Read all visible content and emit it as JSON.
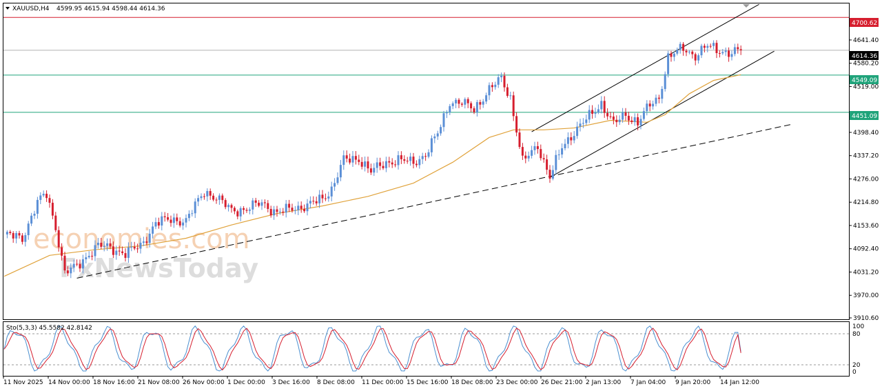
{
  "symbol_header": {
    "symbol": "XAUUSD,H4",
    "ohlc": "4599.95 4615.94 4598.44 4614.36"
  },
  "watermark": {
    "line1": "economies.com",
    "line2": "FxNewsToday"
  },
  "colors": {
    "bull_candle": "#5b8fd6",
    "bear_candle": "#d61e2e",
    "ma_line": "#e0a23a",
    "resistance_line": "#d61e2e",
    "support_line": "#1fa37a",
    "stoch_main": "#4a8fd0",
    "stoch_signal": "#d61e2e",
    "current_price_bg": "#000000"
  },
  "price_labels": {
    "resistance": "4700.62",
    "current": "4614.36",
    "support1": "4549.09",
    "support2": "4451.09"
  },
  "stoch_header": "Sto(5,3,3) 45.5582 42.8142",
  "stoch_levels": [
    "100",
    "80",
    "20",
    "0"
  ],
  "chart_data": {
    "type": "candlestick",
    "symbol": "XAUUSD",
    "timeframe": "H4",
    "ylim": [
      3910.6,
      4741.0
    ],
    "y_ticks": [
      "4641.40",
      "4580.20",
      "4519.00",
      "4398.40",
      "4337.20",
      "4276.00",
      "4214.80",
      "4153.60",
      "4092.40",
      "4031.20",
      "3970.00",
      "3910.60"
    ],
    "x_ticks": [
      "11 Nov 2025",
      "14 Nov 00:00",
      "18 Nov 16:00",
      "21 Nov 08:00",
      "26 Nov 00:00",
      "1 Dec 00:00",
      "3 Dec 16:00",
      "8 Dec 08:00",
      "11 Dec 00:00",
      "15 Dec 16:00",
      "18 Dec 08:00",
      "23 Dec 00:00",
      "26 Dec 21:00",
      "2 Jan 13:00",
      "7 Jan 04:00",
      "9 Jan 20:00",
      "14 Jan 12:00"
    ],
    "horizontal_levels": [
      {
        "price": 4700.62,
        "role": "resistance"
      },
      {
        "price": 4614.36,
        "role": "current"
      },
      {
        "price": 4549.09,
        "role": "support"
      },
      {
        "price": 4451.09,
        "role": "support"
      }
    ],
    "price_path": [
      {
        "i": 0,
        "p": 4130
      },
      {
        "i": 6,
        "p": 4120
      },
      {
        "i": 11,
        "p": 4215
      },
      {
        "i": 14,
        "p": 4235
      },
      {
        "i": 17,
        "p": 4150
      },
      {
        "i": 20,
        "p": 4030
      },
      {
        "i": 24,
        "p": 4045
      },
      {
        "i": 28,
        "p": 4080
      },
      {
        "i": 31,
        "p": 4100
      },
      {
        "i": 35,
        "p": 4095
      },
      {
        "i": 40,
        "p": 4080
      },
      {
        "i": 45,
        "p": 4100
      },
      {
        "i": 50,
        "p": 4160
      },
      {
        "i": 55,
        "p": 4170
      },
      {
        "i": 60,
        "p": 4165
      },
      {
        "i": 66,
        "p": 4245
      },
      {
        "i": 70,
        "p": 4225
      },
      {
        "i": 75,
        "p": 4195
      },
      {
        "i": 80,
        "p": 4195
      },
      {
        "i": 85,
        "p": 4215
      },
      {
        "i": 90,
        "p": 4185
      },
      {
        "i": 95,
        "p": 4200
      },
      {
        "i": 100,
        "p": 4205
      },
      {
        "i": 105,
        "p": 4225
      },
      {
        "i": 108,
        "p": 4250
      },
      {
        "i": 112,
        "p": 4325
      },
      {
        "i": 117,
        "p": 4330
      },
      {
        "i": 121,
        "p": 4295
      },
      {
        "i": 126,
        "p": 4320
      },
      {
        "i": 130,
        "p": 4325
      },
      {
        "i": 135,
        "p": 4320
      },
      {
        "i": 139,
        "p": 4340
      },
      {
        "i": 143,
        "p": 4395
      },
      {
        "i": 147,
        "p": 4480
      },
      {
        "i": 151,
        "p": 4475
      },
      {
        "i": 155,
        "p": 4460
      },
      {
        "i": 160,
        "p": 4510
      },
      {
        "i": 164,
        "p": 4540
      },
      {
        "i": 167,
        "p": 4490
      },
      {
        "i": 171,
        "p": 4320
      },
      {
        "i": 176,
        "p": 4365
      },
      {
        "i": 180,
        "p": 4280
      },
      {
        "i": 184,
        "p": 4360
      },
      {
        "i": 188,
        "p": 4400
      },
      {
        "i": 193,
        "p": 4440
      },
      {
        "i": 197,
        "p": 4475
      },
      {
        "i": 201,
        "p": 4420
      },
      {
        "i": 205,
        "p": 4445
      },
      {
        "i": 209,
        "p": 4425
      },
      {
        "i": 213,
        "p": 4470
      },
      {
        "i": 216,
        "p": 4490
      },
      {
        "i": 219,
        "p": 4595
      },
      {
        "i": 224,
        "p": 4620
      },
      {
        "i": 228,
        "p": 4600
      },
      {
        "i": 232,
        "p": 4625
      },
      {
        "i": 236,
        "p": 4615
      },
      {
        "i": 240,
        "p": 4605
      },
      {
        "i": 243,
        "p": 4614.36
      }
    ],
    "moving_average": [
      {
        "i": 0,
        "p": 4020
      },
      {
        "i": 15,
        "p": 4075
      },
      {
        "i": 30,
        "p": 4090
      },
      {
        "i": 45,
        "p": 4100
      },
      {
        "i": 60,
        "p": 4120
      },
      {
        "i": 75,
        "p": 4155
      },
      {
        "i": 90,
        "p": 4185
      },
      {
        "i": 105,
        "p": 4205
      },
      {
        "i": 120,
        "p": 4230
      },
      {
        "i": 135,
        "p": 4265
      },
      {
        "i": 148,
        "p": 4320
      },
      {
        "i": 160,
        "p": 4385
      },
      {
        "i": 168,
        "p": 4405
      },
      {
        "i": 178,
        "p": 4405
      },
      {
        "i": 188,
        "p": 4410
      },
      {
        "i": 200,
        "p": 4430
      },
      {
        "i": 212,
        "p": 4425
      },
      {
        "i": 218,
        "p": 4445
      },
      {
        "i": 226,
        "p": 4500
      },
      {
        "i": 234,
        "p": 4535
      },
      {
        "i": 243,
        "p": 4550
      }
    ],
    "trendlines": [
      {
        "style": "dashed",
        "from": {
          "i": 24,
          "p": 4015
        },
        "to": {
          "i": 260,
          "p": 4420
        }
      },
      {
        "style": "solid",
        "from": {
          "i": 180,
          "p": 4280
        },
        "to": {
          "i": 254,
          "p": 4612
        }
      },
      {
        "style": "solid",
        "from": {
          "i": 174,
          "p": 4400
        },
        "to": {
          "i": 249,
          "p": 4735
        }
      }
    ],
    "stochastic": {
      "params": "5,3,3",
      "main": 45.5582,
      "signal": 42.8142,
      "ylim": [
        0,
        100
      ],
      "levels": [
        20,
        80
      ]
    }
  }
}
